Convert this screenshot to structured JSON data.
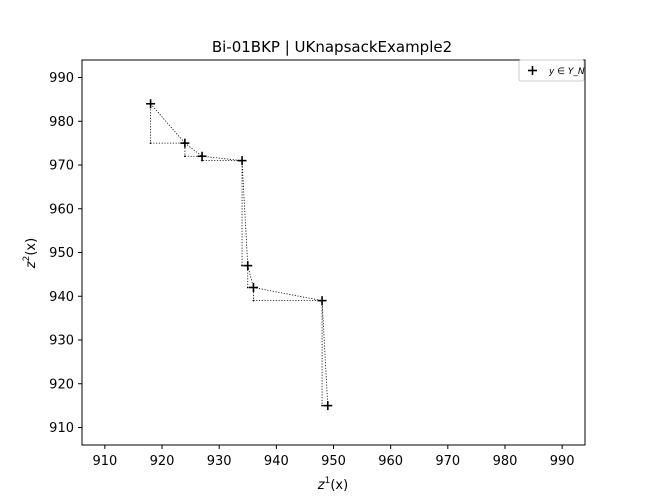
{
  "chart_data": {
    "type": "scatter",
    "title": "Bi-01BKP | UKnapsackExample2",
    "xlabel": {
      "base": "z",
      "sup": "1",
      "tail": "(x)"
    },
    "ylabel": {
      "base": "z",
      "sup": "2",
      "tail": "(x)"
    },
    "xlim": [
      906,
      994
    ],
    "ylim": [
      906,
      994
    ],
    "xticks": [
      910,
      920,
      930,
      940,
      950,
      960,
      970,
      980,
      990
    ],
    "yticks": [
      910,
      920,
      930,
      940,
      950,
      960,
      970,
      980,
      990
    ],
    "legend": {
      "label": "y ∈ Y_N",
      "location": "top-right"
    },
    "series": [
      {
        "name": "y ∈ Y_N",
        "marker": "plus",
        "points": [
          {
            "x": 918,
            "y": 984
          },
          {
            "x": 924,
            "y": 975
          },
          {
            "x": 927,
            "y": 972
          },
          {
            "x": 934,
            "y": 971
          },
          {
            "x": 935,
            "y": 947
          },
          {
            "x": 936,
            "y": 942
          },
          {
            "x": 948,
            "y": 939
          },
          {
            "x": 949,
            "y": 915
          }
        ]
      }
    ],
    "local_nadirs": [
      {
        "x": 918,
        "y": 975
      },
      {
        "x": 924,
        "y": 972
      },
      {
        "x": 927,
        "y": 971
      },
      {
        "x": 934,
        "y": 947
      },
      {
        "x": 935,
        "y": 942
      },
      {
        "x": 936,
        "y": 939
      },
      {
        "x": 948,
        "y": 915
      }
    ],
    "grid": false,
    "colors": {
      "points": "#000000",
      "lines": "#000000",
      "axes": "#000000"
    }
  }
}
